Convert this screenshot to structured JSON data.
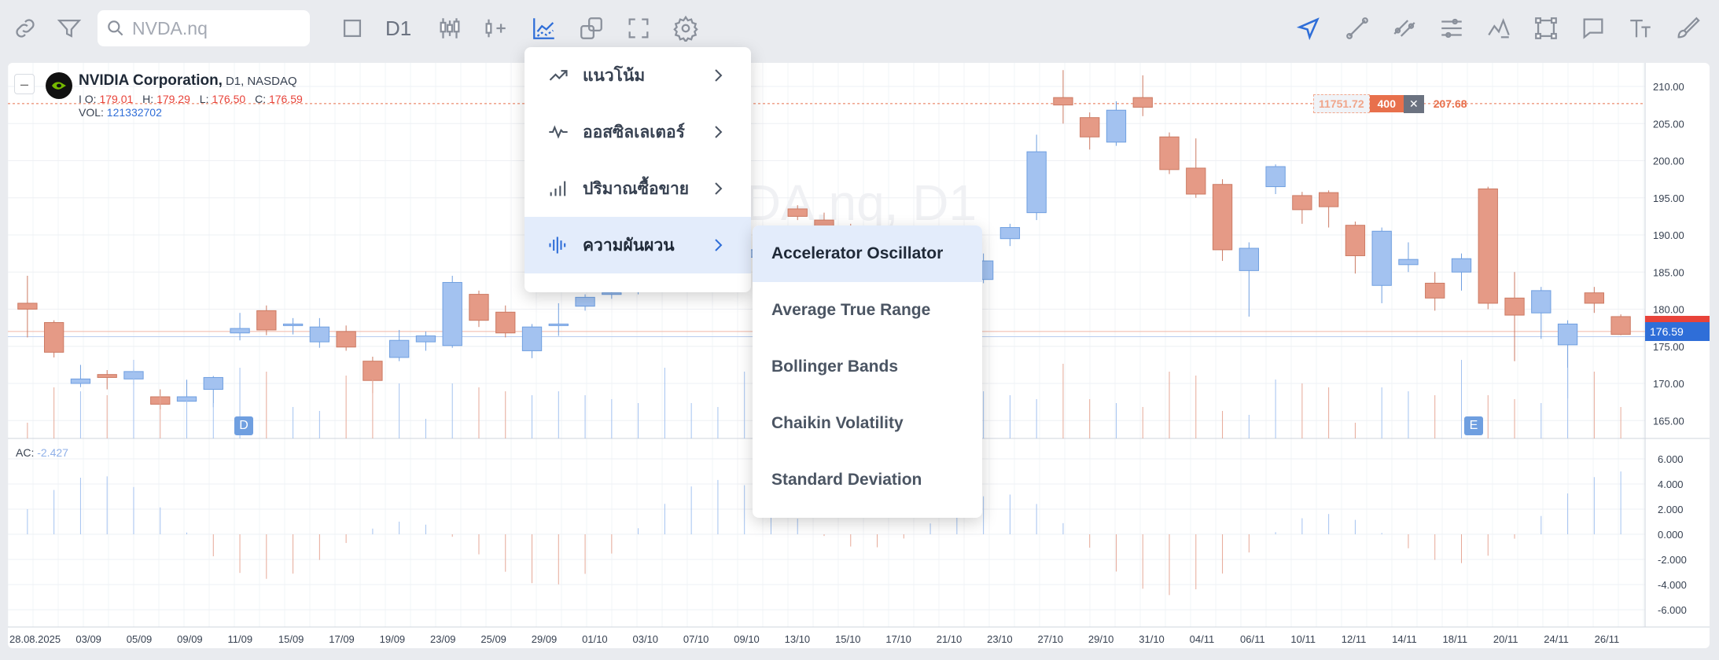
{
  "toolbar": {
    "search_placeholder": "NVDA.nq",
    "timeframe": "D1",
    "left_icons": [
      "link-icon",
      "filter-icon"
    ],
    "middle_icons": [
      "rectangle-icon",
      "candles-icon",
      "indicator-add-icon",
      "indicators-icon",
      "layers-icon",
      "fullscreen-icon",
      "gear-icon"
    ],
    "right_icons": [
      "cursor-arrow-icon",
      "trend-line-icon",
      "channel-icon",
      "fib-levels-icon",
      "pattern-icon",
      "box-icon",
      "comment-icon",
      "text-icon",
      "brush-icon"
    ],
    "accent_color": "#2f6ed8"
  },
  "legend": {
    "company": "NVIDIA Corporation,",
    "timeframe": "D1,",
    "exchange": "NASDAQ",
    "o_label": "O:",
    "o_value": "179.01",
    "h_label": "H:",
    "h_value": "179.29",
    "l_label": "L:",
    "l_value": "176.50",
    "c_label": "C:",
    "c_value": "176.59",
    "vol_label": "VOL:",
    "vol_value": "121332702",
    "ac_label": "AC:",
    "ac_value": "-2.427",
    "prefix": "I"
  },
  "order": {
    "quantity": "11751.72",
    "lots": "400",
    "close": "✕",
    "price": "207.68"
  },
  "last_price": "176.59",
  "markers": {
    "d": "D",
    "e": "E"
  },
  "watermark": "NVDA.nq, D1",
  "menu": {
    "items": [
      {
        "label": "แนวโน้ม",
        "icon": "trend-arrow-icon"
      },
      {
        "label": "ออสซิลเลเตอร์",
        "icon": "oscillator-icon"
      },
      {
        "label": "ปริมาณซื้อขาย",
        "icon": "volume-bars-icon"
      },
      {
        "label": "ความผันผวน",
        "icon": "volatility-icon"
      }
    ],
    "active_index": 3
  },
  "submenu": {
    "items": [
      "Accelerator Oscillator",
      "Average True Range",
      "Bollinger Bands",
      "Chaikin Volatility",
      "Standard Deviation"
    ],
    "active_index": 0
  },
  "chart_data": {
    "type": "candlestick",
    "up_color": "#a3c2f0",
    "down_color": "#e59a86",
    "price_axis": [
      210.0,
      205.0,
      200.0,
      195.0,
      190.0,
      185.0,
      180.0,
      175.0,
      170.0,
      165.0
    ],
    "price_axis_labels": [
      "210.00",
      "205.00",
      "200.00",
      "195.00",
      "190.00",
      "185.00",
      "180.00",
      "175.00",
      "170.00",
      "165.00"
    ],
    "ac_axis": [
      6,
      4,
      2,
      0,
      -2,
      -4,
      -6
    ],
    "ac_axis_labels": [
      "6.000",
      "4.000",
      "2.000",
      "0.000",
      "-2.000",
      "-4.000",
      "-6.000"
    ],
    "x_labels": [
      "28.08.2025",
      "03/09",
      "05/09",
      "09/09",
      "11/09",
      "15/09",
      "17/09",
      "19/09",
      "23/09",
      "25/09",
      "29/09",
      "01/10",
      "03/10",
      "07/10",
      "09/10",
      "13/10",
      "15/10",
      "17/10",
      "21/10",
      "23/10",
      "27/10",
      "29/10",
      "31/10",
      "04/11",
      "06/11",
      "10/11",
      "12/11",
      "14/11",
      "18/11",
      "20/11",
      "24/11",
      "26/11"
    ],
    "candles": [
      {
        "o": 180.8,
        "h": 184.5,
        "l": 176.2,
        "c": 180.0
      },
      {
        "o": 178.2,
        "h": 178.5,
        "l": 173.5,
        "c": 174.2
      },
      {
        "o": 170.0,
        "h": 172.5,
        "l": 169.5,
        "c": 170.6
      },
      {
        "o": 171.2,
        "h": 171.8,
        "l": 169.2,
        "c": 170.8
      },
      {
        "o": 170.6,
        "h": 172.0,
        "l": 169.8,
        "c": 171.6
      },
      {
        "o": 168.2,
        "h": 169.2,
        "l": 166.5,
        "c": 167.2
      },
      {
        "o": 167.6,
        "h": 170.5,
        "l": 167.0,
        "c": 168.2
      },
      {
        "o": 169.2,
        "h": 171.0,
        "l": 166.8,
        "c": 170.8
      },
      {
        "o": 176.8,
        "h": 179.5,
        "l": 175.8,
        "c": 177.4
      },
      {
        "o": 179.8,
        "h": 180.5,
        "l": 176.5,
        "c": 177.2
      },
      {
        "o": 177.8,
        "h": 178.8,
        "l": 176.6,
        "c": 178.0
      },
      {
        "o": 175.6,
        "h": 178.8,
        "l": 174.8,
        "c": 177.6
      },
      {
        "o": 177.0,
        "h": 177.8,
        "l": 174.4,
        "c": 174.9
      },
      {
        "o": 173.0,
        "h": 173.6,
        "l": 168.7,
        "c": 170.4
      },
      {
        "o": 173.5,
        "h": 177.2,
        "l": 173.0,
        "c": 175.8
      },
      {
        "o": 175.6,
        "h": 177.0,
        "l": 174.4,
        "c": 176.4
      },
      {
        "o": 175.1,
        "h": 184.5,
        "l": 174.8,
        "c": 183.6
      },
      {
        "o": 182.0,
        "h": 182.5,
        "l": 177.6,
        "c": 178.5
      },
      {
        "o": 179.6,
        "h": 180.5,
        "l": 176.2,
        "c": 176.8
      },
      {
        "o": 174.4,
        "h": 178.0,
        "l": 173.4,
        "c": 177.6
      },
      {
        "o": 178.0,
        "h": 180.8,
        "l": 176.4,
        "c": 178.0
      },
      {
        "o": 180.4,
        "h": 182.0,
        "l": 179.8,
        "c": 181.6
      },
      {
        "o": 182.0,
        "h": 182.8,
        "l": 181.4,
        "c": 182.2
      },
      {
        "o": 182.5,
        "h": 183.5,
        "l": 182.0,
        "c": 183.0
      },
      {
        "o": 183.2,
        "h": 184.5,
        "l": 182.8,
        "c": 184.0
      },
      {
        "o": 184.5,
        "h": 186.0,
        "l": 183.8,
        "c": 185.5
      },
      {
        "o": 186.0,
        "h": 188.0,
        "l": 185.0,
        "c": 187.0
      },
      {
        "o": 187.0,
        "h": 189.0,
        "l": 186.0,
        "c": 188.0
      },
      {
        "o": 188.5,
        "h": 190.0,
        "l": 187.5,
        "c": 189.0
      },
      {
        "o": 193.5,
        "h": 194.0,
        "l": 192.0,
        "c": 192.5
      },
      {
        "o": 192.0,
        "h": 193.0,
        "l": 190.5,
        "c": 191.0
      },
      {
        "o": 190.5,
        "h": 191.5,
        "l": 187.0,
        "c": 188.0
      },
      {
        "o": 186.0,
        "h": 187.0,
        "l": 184.0,
        "c": 185.0
      },
      {
        "o": 183.0,
        "h": 184.5,
        "l": 181.5,
        "c": 182.0
      },
      {
        "o": 181.0,
        "h": 183.0,
        "l": 180.0,
        "c": 182.5
      },
      {
        "o": 180.5,
        "h": 183.0,
        "l": 180.0,
        "c": 182.5
      },
      {
        "o": 184.0,
        "h": 187.5,
        "l": 183.5,
        "c": 186.5
      },
      {
        "o": 189.5,
        "h": 191.5,
        "l": 188.5,
        "c": 191.0
      },
      {
        "o": 193.0,
        "h": 203.5,
        "l": 192.0,
        "c": 201.2
      },
      {
        "o": 208.5,
        "h": 212.2,
        "l": 205.0,
        "c": 207.5
      },
      {
        "o": 205.8,
        "h": 206.5,
        "l": 201.5,
        "c": 203.2
      },
      {
        "o": 202.5,
        "h": 208.0,
        "l": 202.0,
        "c": 206.8
      },
      {
        "o": 208.5,
        "h": 211.5,
        "l": 206.0,
        "c": 207.2
      },
      {
        "o": 203.2,
        "h": 203.8,
        "l": 198.2,
        "c": 198.8
      },
      {
        "o": 199.0,
        "h": 203.0,
        "l": 195.0,
        "c": 195.5
      },
      {
        "o": 196.8,
        "h": 197.5,
        "l": 186.5,
        "c": 188.0
      },
      {
        "o": 185.2,
        "h": 189.0,
        "l": 179.0,
        "c": 188.2
      },
      {
        "o": 196.5,
        "h": 199.5,
        "l": 195.5,
        "c": 199.2
      },
      {
        "o": 195.3,
        "h": 195.8,
        "l": 191.5,
        "c": 193.4
      },
      {
        "o": 195.7,
        "h": 196.0,
        "l": 191.0,
        "c": 193.8
      },
      {
        "o": 191.3,
        "h": 191.8,
        "l": 184.8,
        "c": 187.2
      },
      {
        "o": 183.2,
        "h": 191.0,
        "l": 180.8,
        "c": 190.5
      },
      {
        "o": 186.0,
        "h": 189.0,
        "l": 185.0,
        "c": 186.7
      },
      {
        "o": 183.5,
        "h": 185.0,
        "l": 179.8,
        "c": 181.5
      },
      {
        "o": 185.0,
        "h": 187.5,
        "l": 182.5,
        "c": 186.8
      },
      {
        "o": 196.2,
        "h": 196.5,
        "l": 180.0,
        "c": 180.8
      },
      {
        "o": 181.5,
        "h": 185.0,
        "l": 173.0,
        "c": 179.2
      },
      {
        "o": 179.5,
        "h": 183.0,
        "l": 176.0,
        "c": 182.5
      },
      {
        "o": 175.2,
        "h": 178.5,
        "l": 168.0,
        "c": 178.0
      },
      {
        "o": 182.2,
        "h": 183.0,
        "l": 179.5,
        "c": 180.8
      },
      {
        "o": 179.0,
        "h": 179.3,
        "l": 176.5,
        "c": 176.6
      }
    ]
  }
}
